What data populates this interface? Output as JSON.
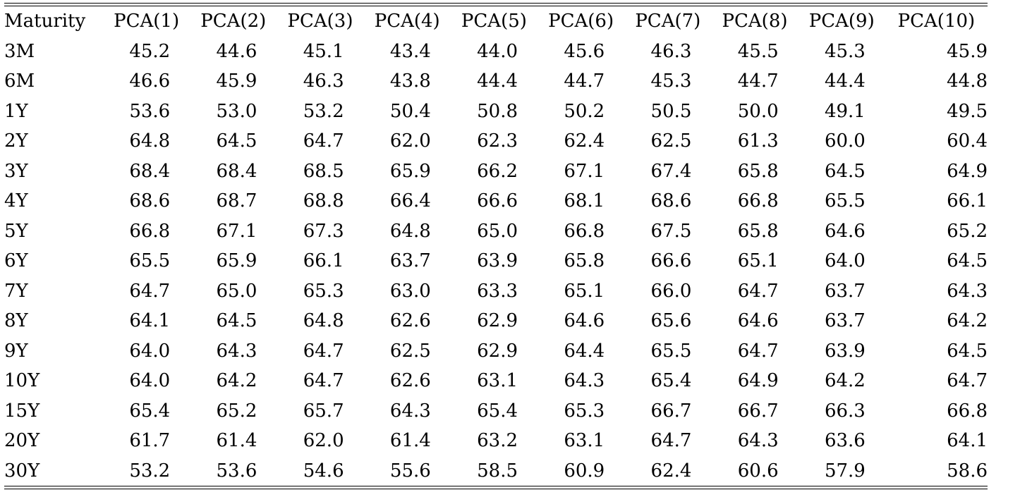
{
  "table": {
    "headers": [
      "Maturity",
      "PCA(1)",
      "PCA(2)",
      "PCA(3)",
      "PCA(4)",
      "PCA(5)",
      "PCA(6)",
      "PCA(7)",
      "PCA(8)",
      "PCA(9)",
      "PCA(10)"
    ],
    "rows": [
      [
        "3M",
        "45.2",
        "44.6",
        "45.1",
        "43.4",
        "44.0",
        "45.6",
        "46.3",
        "45.5",
        "45.3",
        "45.9"
      ],
      [
        "6M",
        "46.6",
        "45.9",
        "46.3",
        "43.8",
        "44.4",
        "44.7",
        "45.3",
        "44.7",
        "44.4",
        "44.8"
      ],
      [
        "1Y",
        "53.6",
        "53.0",
        "53.2",
        "50.4",
        "50.8",
        "50.2",
        "50.5",
        "50.0",
        "49.1",
        "49.5"
      ],
      [
        "2Y",
        "64.8",
        "64.5",
        "64.7",
        "62.0",
        "62.3",
        "62.4",
        "62.5",
        "61.3",
        "60.0",
        "60.4"
      ],
      [
        "3Y",
        "68.4",
        "68.4",
        "68.5",
        "65.9",
        "66.2",
        "67.1",
        "67.4",
        "65.8",
        "64.5",
        "64.9"
      ],
      [
        "4Y",
        "68.6",
        "68.7",
        "68.8",
        "66.4",
        "66.6",
        "68.1",
        "68.6",
        "66.8",
        "65.5",
        "66.1"
      ],
      [
        "5Y",
        "66.8",
        "67.1",
        "67.3",
        "64.8",
        "65.0",
        "66.8",
        "67.5",
        "65.8",
        "64.6",
        "65.2"
      ],
      [
        "6Y",
        "65.5",
        "65.9",
        "66.1",
        "63.7",
        "63.9",
        "65.8",
        "66.6",
        "65.1",
        "64.0",
        "64.5"
      ],
      [
        "7Y",
        "64.7",
        "65.0",
        "65.3",
        "63.0",
        "63.3",
        "65.1",
        "66.0",
        "64.7",
        "63.7",
        "64.3"
      ],
      [
        "8Y",
        "64.1",
        "64.5",
        "64.8",
        "62.6",
        "62.9",
        "64.6",
        "65.6",
        "64.6",
        "63.7",
        "64.2"
      ],
      [
        "9Y",
        "64.0",
        "64.3",
        "64.7",
        "62.5",
        "62.9",
        "64.4",
        "65.5",
        "64.7",
        "63.9",
        "64.5"
      ],
      [
        "10Y",
        "64.0",
        "64.2",
        "64.7",
        "62.6",
        "63.1",
        "64.3",
        "65.4",
        "64.9",
        "64.2",
        "64.7"
      ],
      [
        "15Y",
        "65.4",
        "65.2",
        "65.7",
        "64.3",
        "65.4",
        "65.3",
        "66.7",
        "66.7",
        "66.3",
        "66.8"
      ],
      [
        "20Y",
        "61.7",
        "61.4",
        "62.0",
        "61.4",
        "63.2",
        "63.1",
        "64.7",
        "64.3",
        "63.6",
        "64.1"
      ],
      [
        "30Y",
        "53.2",
        "53.6",
        "54.6",
        "55.6",
        "58.5",
        "60.9",
        "62.4",
        "60.6",
        "57.9",
        "58.6"
      ]
    ]
  }
}
